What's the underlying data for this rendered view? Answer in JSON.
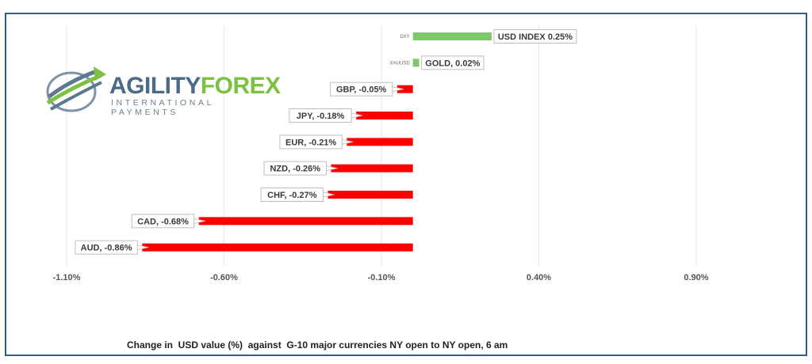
{
  "logo": {
    "word1": "AGILITY",
    "word2": "FOREX",
    "subtitle": "INTERNATIONAL PAYMENTS"
  },
  "caption": "Change in  USD value (%)  against  G-10 major currencies NY open to NY open, 6 am",
  "colors": {
    "positive": "#7dc86a",
    "negative": "#ff0000",
    "grid": "#e6e6e6",
    "frame": "#2f5d8a"
  },
  "chart_data": {
    "type": "bar",
    "orientation": "horizontal",
    "xlim": [
      -1.1,
      0.9
    ],
    "x_ticks": [
      "-1.10%",
      "-0.60%",
      "-0.10%",
      "0.40%",
      "0.90%"
    ],
    "x_tick_values": [
      -1.1,
      -0.6,
      -0.1,
      0.4,
      0.9
    ],
    "grid": true,
    "categories": [
      "DXY",
      "XAUUSD",
      "GBP",
      "JPY",
      "EUR",
      "NZD",
      "CHF",
      "CAD",
      "AUD"
    ],
    "values": [
      0.25,
      0.02,
      -0.05,
      -0.18,
      -0.21,
      -0.26,
      -0.27,
      -0.68,
      -0.86
    ],
    "data_labels": [
      "USD INDEX 0.25%",
      "GOLD, 0.02%",
      "GBP, -0.05%",
      "JPY, -0.18%",
      "EUR, -0.21%",
      "NZD, -0.26%",
      "CHF, -0.27%",
      "CAD, -0.68%",
      "AUD, -0.86%"
    ],
    "category_labels_shown": [
      "DXY",
      "XAUUSD",
      "",
      "",
      "",
      "",
      "",
      "",
      ""
    ]
  }
}
